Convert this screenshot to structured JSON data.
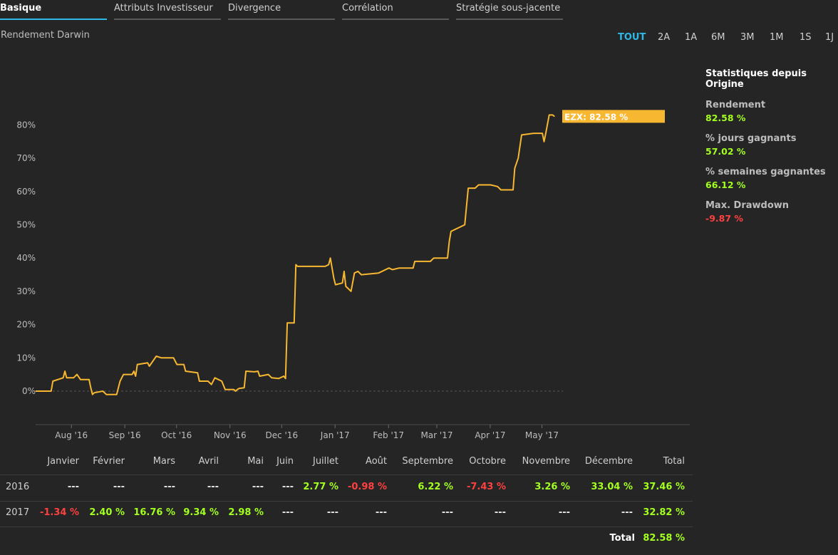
{
  "tabs": [
    "Basique",
    "Attributs Investisseur",
    "Divergence",
    "Corrélation",
    "Stratégie sous-jacente"
  ],
  "subtitle": "Rendement Darwin",
  "ranges": [
    "TOUT",
    "2A",
    "1A",
    "6M",
    "3M",
    "1M",
    "1S",
    "1J"
  ],
  "active_range": "TOUT",
  "stats": {
    "title": "Statistiques depuis Origine",
    "items": [
      {
        "label": "Rendement",
        "value": "82.58 %",
        "status": "pos"
      },
      {
        "label": "% jours gagnants",
        "value": "57.02 %",
        "status": "pos"
      },
      {
        "label": "% semaines gagnantes",
        "value": "66.12 %",
        "status": "pos"
      },
      {
        "label": "Max. Drawdown",
        "value": "-9.87 %",
        "status": "neg"
      }
    ]
  },
  "colors": {
    "line": "#f7b731",
    "positive": "#a3ff1f",
    "negative": "#ff4040",
    "accent": "#2fb7e6"
  },
  "chart_data": {
    "type": "line",
    "series": [
      {
        "name": "EZX",
        "label": "EZX: 82.58 %"
      }
    ],
    "y_ticks": [
      "0%",
      "10%",
      "20%",
      "30%",
      "40%",
      "50%",
      "60%",
      "70%",
      "80%"
    ],
    "x_ticks": [
      "Aug '16",
      "Sep '16",
      "Oct '16",
      "Nov '16",
      "Dec '16",
      "Jan '17",
      "Feb '17",
      "Mar '17",
      "Apr '17",
      "May '17"
    ],
    "ylim": [
      -10,
      90
    ],
    "points": [
      [
        "2016-07-10",
        0
      ],
      [
        "2016-07-15",
        0
      ],
      [
        "2016-07-19",
        0
      ],
      [
        "2016-07-20",
        3
      ],
      [
        "2016-07-26",
        4
      ],
      [
        "2016-07-27",
        6
      ],
      [
        "2016-07-28",
        4
      ],
      [
        "2016-08-01",
        4
      ],
      [
        "2016-08-03",
        5
      ],
      [
        "2016-08-05",
        3.5
      ],
      [
        "2016-08-10",
        3.5
      ],
      [
        "2016-08-11",
        1
      ],
      [
        "2016-08-12",
        -1
      ],
      [
        "2016-08-13",
        -0.5
      ],
      [
        "2016-08-18",
        0
      ],
      [
        "2016-08-20",
        -1
      ],
      [
        "2016-08-26",
        -1
      ],
      [
        "2016-08-28",
        3
      ],
      [
        "2016-08-30",
        5
      ],
      [
        "2016-09-04",
        5
      ],
      [
        "2016-09-05",
        6
      ],
      [
        "2016-09-06",
        4.5
      ],
      [
        "2016-09-07",
        8
      ],
      [
        "2016-09-13",
        8.5
      ],
      [
        "2016-09-14",
        7.5
      ],
      [
        "2016-09-18",
        10.5
      ],
      [
        "2016-09-21",
        10
      ],
      [
        "2016-09-28",
        10
      ],
      [
        "2016-09-30",
        8
      ],
      [
        "2016-10-04",
        8
      ],
      [
        "2016-10-05",
        6
      ],
      [
        "2016-10-12",
        5.5
      ],
      [
        "2016-10-13",
        3
      ],
      [
        "2016-10-18",
        3
      ],
      [
        "2016-10-20",
        2
      ],
      [
        "2016-10-22",
        4
      ],
      [
        "2016-10-26",
        3
      ],
      [
        "2016-10-28",
        0.5
      ],
      [
        "2016-11-02",
        0.5
      ],
      [
        "2016-11-03",
        0
      ],
      [
        "2016-11-04",
        0.5
      ],
      [
        "2016-11-05",
        0.8
      ],
      [
        "2016-11-08",
        1
      ],
      [
        "2016-11-09",
        6
      ],
      [
        "2016-11-14",
        5.8
      ],
      [
        "2016-11-16",
        6
      ],
      [
        "2016-11-17",
        4.5
      ],
      [
        "2016-11-22",
        5
      ],
      [
        "2016-11-24",
        4
      ],
      [
        "2016-11-28",
        3.8
      ],
      [
        "2016-12-01",
        4.5
      ],
      [
        "2016-12-02",
        3.8
      ],
      [
        "2016-12-03",
        20.5
      ],
      [
        "2016-12-07",
        20.5
      ],
      [
        "2016-12-08",
        38
      ],
      [
        "2016-12-09",
        37.5
      ],
      [
        "2016-12-25",
        37.5
      ],
      [
        "2016-12-27",
        38
      ],
      [
        "2016-12-28",
        40
      ],
      [
        "2016-12-30",
        34
      ],
      [
        "2016-12-31",
        32
      ],
      [
        "2017-01-04",
        32.5
      ],
      [
        "2017-01-05",
        36
      ],
      [
        "2017-01-06",
        31.5
      ],
      [
        "2017-01-09",
        30
      ],
      [
        "2017-01-11",
        35.5
      ],
      [
        "2017-01-13",
        36
      ],
      [
        "2017-01-15",
        35
      ],
      [
        "2017-01-25",
        35.5
      ],
      [
        "2017-01-31",
        37
      ],
      [
        "2017-02-02",
        36.5
      ],
      [
        "2017-02-06",
        37
      ],
      [
        "2017-02-14",
        37
      ],
      [
        "2017-02-15",
        39
      ],
      [
        "2017-02-24",
        39
      ],
      [
        "2017-02-26",
        40
      ],
      [
        "2017-03-06",
        40
      ],
      [
        "2017-03-07",
        45
      ],
      [
        "2017-03-08",
        48
      ],
      [
        "2017-03-16",
        50
      ],
      [
        "2017-03-18",
        61
      ],
      [
        "2017-03-22",
        61
      ],
      [
        "2017-03-24",
        62
      ],
      [
        "2017-03-31",
        62
      ],
      [
        "2017-04-04",
        61.5
      ],
      [
        "2017-04-06",
        60.5
      ],
      [
        "2017-04-13",
        60.5
      ],
      [
        "2017-04-14",
        67
      ],
      [
        "2017-04-16",
        70
      ],
      [
        "2017-04-18",
        77
      ],
      [
        "2017-04-25",
        77.5
      ],
      [
        "2017-04-30",
        77.5
      ],
      [
        "2017-05-01",
        75
      ],
      [
        "2017-05-02",
        77.5
      ],
      [
        "2017-05-04",
        83
      ],
      [
        "2017-05-06",
        83
      ],
      [
        "2017-05-07",
        82.58
      ]
    ]
  },
  "monthly": {
    "headers": [
      "Janvier",
      "Février",
      "Mars",
      "Avril",
      "Mai",
      "Juin",
      "Juillet",
      "Août",
      "Septembre",
      "Octobre",
      "Novembre",
      "Décembre",
      "Total"
    ],
    "rows": [
      {
        "year": "2016",
        "values": [
          "---",
          "---",
          "---",
          "---",
          "---",
          "---",
          "2.77 %",
          "-0.98 %",
          "6.22 %",
          "-7.43 %",
          "3.26 %",
          "33.04 %",
          "37.46 %"
        ]
      },
      {
        "year": "2017",
        "values": [
          "-1.34 %",
          "2.40 %",
          "16.76 %",
          "9.34 %",
          "2.98 %",
          "---",
          "---",
          "---",
          "---",
          "---",
          "---",
          "---",
          "32.82 %"
        ]
      }
    ],
    "total_label": "Total",
    "total_value": "82.58 %"
  }
}
